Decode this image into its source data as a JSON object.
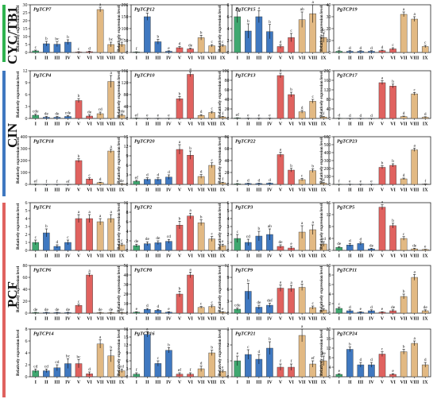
{
  "colors": {
    "green": "#3fa870",
    "blue": "#3f78c0",
    "red": "#e0625f",
    "tan": "#e2b983",
    "group_cyc": "#2fb34f",
    "group_cin": "#3f78c0",
    "group_pcf": "#e0625f"
  },
  "groups": [
    {
      "label": "CYC/TB1",
      "color_key": "group_cyc"
    },
    {
      "label": "CIN",
      "color_key": "group_cin"
    },
    {
      "label": "PCF",
      "color_key": "group_pcf"
    }
  ],
  "y_axis_label": "Relatively expression level",
  "categories": [
    "I",
    "II",
    "III",
    "IV",
    "V",
    "VI",
    "VII",
    "VIII",
    "IX"
  ],
  "bar_colors": [
    "green",
    "blue",
    "blue",
    "blue",
    "red",
    "red",
    "tan",
    "tan",
    "tan"
  ],
  "chart_data": [
    {
      "type": "bar",
      "title": "PgTCP7",
      "yticks": [
        0,
        5,
        10,
        15,
        20,
        25,
        30
      ],
      "values": [
        1,
        5.5,
        5.2,
        6.5,
        0.3,
        0.5,
        27,
        5,
        5
      ],
      "errors": [
        0.5,
        1.5,
        1.5,
        1.5,
        0.2,
        0.3,
        1.5,
        1.5,
        1.5
      ],
      "letters": [
        "c",
        "b",
        "bc",
        "b",
        "c",
        "d",
        "a",
        "bc",
        "bc"
      ]
    },
    {
      "type": "bar",
      "title": "PgTCP12",
      "yticks": [
        0,
        50,
        100,
        150,
        200
      ],
      "values": [
        2,
        150,
        45,
        5,
        20,
        15,
        62,
        28,
        28
      ],
      "errors": [
        1,
        15,
        10,
        2,
        5,
        3,
        10,
        5,
        5
      ],
      "letters": [
        "f",
        "a",
        "b",
        "e",
        "d",
        "de",
        "b",
        "c",
        "c"
      ]
    },
    {
      "type": "bar",
      "title": "PgTCP15",
      "yticks": [
        0,
        2,
        4,
        6,
        8
      ],
      "values": [
        6,
        3.6,
        6,
        3.5,
        1,
        2.5,
        5.5,
        6.5,
        2.5
      ],
      "errors": [
        1,
        1.2,
        1,
        1.2,
        0.3,
        0.7,
        1.3,
        1.5,
        0.8
      ],
      "letters": [
        "a",
        "b",
        "a",
        "b",
        "d",
        "c",
        "ab",
        "a",
        "bc"
      ]
    },
    {
      "type": "bar",
      "title": "PgTCP19",
      "yticks": [
        0,
        10,
        20,
        30,
        40
      ],
      "values": [
        1,
        1,
        1,
        1,
        1.5,
        3,
        32,
        28,
        5
      ],
      "errors": [
        0.5,
        0.5,
        0.5,
        0.5,
        0.5,
        1,
        2,
        2,
        1
      ],
      "letters": [
        "d",
        "d",
        "d",
        "d",
        "d",
        "c",
        "a",
        "a",
        "c"
      ]
    },
    {
      "type": "bar",
      "title": "PgTCP4",
      "yticks": [
        0,
        3,
        6,
        9,
        12
      ],
      "values": [
        0.8,
        0.3,
        0.3,
        0.5,
        4.5,
        0.6,
        1.2,
        9.3,
        0.8
      ],
      "errors": [
        0.3,
        0.2,
        0.2,
        0.2,
        0.5,
        0.3,
        0.4,
        1.5,
        0.3
      ],
      "letters": [
        "cde",
        "de",
        "de",
        "cde",
        "b",
        "de",
        "cd",
        "a",
        "cde"
      ]
    },
    {
      "type": "bar",
      "title": "PgTCP10",
      "yticks": [
        0,
        40,
        80,
        120,
        160
      ],
      "values": [
        1,
        0.5,
        0.5,
        0.5,
        66,
        148,
        10,
        20,
        5
      ],
      "errors": [
        0.5,
        0.3,
        0.3,
        0.3,
        8,
        8,
        3,
        4,
        2
      ],
      "letters": [
        "ef",
        "e",
        "e",
        "e",
        "b",
        "a",
        "d",
        "c",
        "f"
      ]
    },
    {
      "type": "bar",
      "title": "PgTCP13",
      "yticks": [
        0,
        20,
        40,
        60,
        80,
        100
      ],
      "values": [
        1,
        0.5,
        0.5,
        0.5,
        90,
        50,
        14,
        36,
        3
      ],
      "errors": [
        0.5,
        0.3,
        0.3,
        0.3,
        5,
        5,
        3,
        4,
        1
      ],
      "letters": [
        "ef",
        "e",
        "e",
        "e",
        "a",
        "b",
        "d",
        "c",
        "f"
      ]
    },
    {
      "type": "bar",
      "title": "PgTCP17",
      "yticks": [
        0,
        40,
        80,
        120,
        160,
        200
      ],
      "values": [
        1,
        0.5,
        0.5,
        0.5,
        150,
        136,
        8,
        103,
        5
      ],
      "errors": [
        0.5,
        0.3,
        0.3,
        0.3,
        8,
        8,
        2,
        6,
        2
      ],
      "letters": [
        "d",
        "d",
        "d",
        "d",
        "a",
        "b",
        "d",
        "c",
        "d"
      ]
    },
    {
      "type": "bar",
      "title": "PgTCP18",
      "yticks": [
        0,
        100,
        200,
        300,
        400
      ],
      "values": [
        2,
        1,
        1,
        1,
        200,
        45,
        15,
        280,
        5
      ],
      "errors": [
        1,
        0.5,
        0.5,
        0.5,
        15,
        10,
        4,
        15,
        2
      ],
      "letters": [
        "ef",
        "f",
        "f",
        "ef",
        "b",
        "c",
        "d",
        "a",
        "de"
      ]
    },
    {
      "type": "bar",
      "title": "PgTCP20",
      "yticks": [
        0,
        3,
        6,
        9,
        12,
        15
      ],
      "values": [
        1,
        1.6,
        1.6,
        2.3,
        11,
        9.2,
        2.5,
        6,
        0.5
      ],
      "errors": [
        0.3,
        0.5,
        0.5,
        0.7,
        1.5,
        1.3,
        0.6,
        0.8,
        0.2
      ],
      "letters": [
        "ef",
        "d",
        "d",
        "d",
        "a",
        "b",
        "d",
        "c",
        "f"
      ]
    },
    {
      "type": "bar",
      "title": "PgTCP22",
      "yticks": [
        0,
        20,
        40,
        60,
        80
      ],
      "values": [
        1,
        1.5,
        1.5,
        2,
        50,
        24,
        8,
        23,
        2
      ],
      "errors": [
        0.5,
        0.5,
        0.5,
        0.5,
        4,
        3,
        2,
        3,
        1
      ],
      "letters": [
        "e",
        "d",
        "d",
        "d",
        "a",
        "b",
        "c",
        "b",
        "d"
      ]
    },
    {
      "type": "bar",
      "title": "PgTCP23",
      "yticks": [
        0,
        100,
        200,
        300,
        400,
        500,
        600
      ],
      "values": [
        2,
        3,
        3,
        3,
        215,
        240,
        70,
        435,
        5
      ],
      "errors": [
        1,
        1,
        1,
        1,
        20,
        20,
        10,
        20,
        2
      ],
      "letters": [
        "f",
        "e",
        "e",
        "e",
        "b",
        "b",
        "d",
        "a",
        "f"
      ]
    },
    {
      "type": "bar",
      "title": "PgTCP1",
      "yticks": [
        0,
        1,
        2,
        3,
        4,
        5,
        6
      ],
      "values": [
        1,
        2.2,
        0.5,
        1,
        4,
        4,
        3.6,
        4,
        0.7
      ],
      "errors": [
        0.3,
        0.5,
        0.2,
        0.3,
        0.5,
        0.5,
        0.4,
        0.5,
        0.2
      ],
      "letters": [
        "c",
        "b",
        "d",
        "c",
        "a",
        "a",
        "a",
        "a",
        "c"
      ]
    },
    {
      "type": "bar",
      "title": "PgTCP2",
      "yticks": [
        0,
        2,
        4,
        6,
        8,
        10
      ],
      "values": [
        1,
        1.4,
        1.6,
        1.9,
        5.3,
        7.2,
        5.8,
        2.4,
        1
      ],
      "errors": [
        0.3,
        0.4,
        0.4,
        0.4,
        0.8,
        0.6,
        0.6,
        0.5,
        0.3
      ],
      "letters": [
        "de",
        "de",
        "de",
        "cd",
        "b",
        "a",
        "b",
        "c",
        "e"
      ]
    },
    {
      "type": "bar",
      "title": "PgTCP3",
      "yticks": [
        0,
        1,
        2,
        3,
        4,
        5,
        6
      ],
      "values": [
        1.5,
        1,
        1.8,
        2,
        0.5,
        0.3,
        2.3,
        2.6,
        0.8
      ],
      "errors": [
        0.5,
        0.4,
        0.6,
        0.7,
        0.2,
        0.2,
        0.8,
        0.6,
        0.3
      ],
      "letters": [
        "c",
        "cd",
        "b",
        "ab",
        "de",
        "e",
        "a",
        "a",
        "cd"
      ]
    },
    {
      "type": "bar",
      "title": "PgTCP5",
      "yticks": [
        0,
        4,
        8,
        12,
        16
      ],
      "values": [
        1,
        1.8,
        2.3,
        0.5,
        14.5,
        8.3,
        4,
        0.5,
        0.3
      ],
      "errors": [
        0.3,
        0.5,
        0.5,
        0.2,
        0.8,
        0.8,
        0.6,
        0.2,
        0.1
      ],
      "letters": [
        "de",
        "d",
        "d",
        "de",
        "a",
        "b",
        "c",
        "de",
        "e"
      ]
    },
    {
      "type": "bar",
      "title": "PgTCP6",
      "yticks": [
        0,
        20,
        40,
        60,
        80
      ],
      "values": [
        1,
        1,
        1,
        1,
        13,
        64,
        1,
        1,
        1
      ],
      "errors": [
        0.5,
        0.5,
        0.5,
        0.5,
        2,
        3,
        0.5,
        0.5,
        0.5
      ],
      "letters": [
        "de",
        "de",
        "de",
        "de",
        "c",
        "a",
        "de",
        "de",
        "de"
      ]
    },
    {
      "type": "bar",
      "title": "PgTCP8",
      "yticks": [
        0,
        10,
        20,
        30,
        40,
        50
      ],
      "values": [
        1,
        4,
        3,
        1,
        20,
        40,
        6,
        7,
        1
      ],
      "errors": [
        0.5,
        1,
        1,
        0.5,
        3,
        3,
        1,
        1.5,
        0.5
      ],
      "letters": [
        "e",
        "d",
        "d",
        "e",
        "b",
        "a",
        "c",
        "c",
        "e"
      ]
    },
    {
      "type": "bar",
      "title": "PgTCP9",
      "yticks": [
        0,
        3,
        6,
        9,
        12
      ],
      "values": [
        1,
        5.5,
        1.5,
        2,
        6.3,
        6.2,
        6.5,
        1.4,
        0.8
      ],
      "errors": [
        0.3,
        2,
        0.5,
        0.5,
        0.8,
        0.8,
        0.8,
        0.4,
        0.3
      ],
      "letters": [
        "cde",
        "b",
        "de",
        "def",
        "a",
        "a",
        "a",
        "c",
        "e"
      ]
    },
    {
      "type": "bar",
      "title": "PgTCP11",
      "yticks": [
        0,
        2,
        4,
        6,
        8,
        10
      ],
      "values": [
        1,
        0.5,
        0.2,
        0.5,
        0.2,
        0.5,
        3.5,
        7.5,
        0.5
      ],
      "errors": [
        0.3,
        0.2,
        0.1,
        0.2,
        0.1,
        0.2,
        0.5,
        0.6,
        0.2
      ],
      "letters": [
        "c",
        "d",
        "e",
        "d",
        "e",
        "de",
        "b",
        "a",
        "de"
      ]
    },
    {
      "type": "bar",
      "title": "PgTCP14",
      "yticks": [
        0,
        2,
        4,
        6,
        8
      ],
      "values": [
        1,
        1,
        1.5,
        2.2,
        2.2,
        0.5,
        5.5,
        3.5,
        1
      ],
      "errors": [
        0.3,
        0.3,
        0.5,
        0.8,
        0.7,
        0.3,
        0.7,
        1,
        0.3
      ],
      "letters": [
        "cd",
        "cd",
        "cd",
        "bc",
        "bc",
        "d",
        "a",
        "b",
        "cd"
      ]
    },
    {
      "type": "bar",
      "title": "PgTCP16",
      "yticks": [
        0,
        3,
        6,
        9,
        12,
        15,
        18
      ],
      "values": [
        1,
        16,
        5,
        10,
        1,
        1,
        3,
        9,
        2
      ],
      "errors": [
        0.5,
        1,
        1,
        1,
        0.5,
        0.5,
        1,
        1,
        0.5
      ],
      "letters": [
        "f",
        "a",
        "c",
        "b",
        "ef",
        "f",
        "d",
        "b",
        "e"
      ]
    },
    {
      "type": "bar",
      "title": "PgTCP21",
      "yticks": [
        0,
        1,
        2,
        3
      ],
      "values": [
        1,
        1.4,
        1.1,
        1.8,
        0.6,
        0.6,
        2.6,
        0.8,
        1
      ],
      "errors": [
        0.3,
        0.3,
        0.3,
        0.4,
        0.2,
        0.2,
        0.4,
        0.2,
        0.3
      ],
      "letters": [
        "e",
        "c",
        "d",
        "b",
        "f",
        "f",
        "a",
        "ef",
        "de"
      ]
    },
    {
      "type": "bar",
      "title": "PgTCP24",
      "yticks": [
        0,
        4,
        8,
        12,
        16,
        20
      ],
      "values": [
        1,
        11.5,
        5,
        5,
        9.5,
        1,
        10.5,
        14,
        5
      ],
      "errors": [
        0.3,
        1,
        1,
        1,
        1,
        0.3,
        1,
        1,
        1
      ],
      "letters": [
        "e",
        "b",
        "d",
        "d",
        "c",
        "e",
        "b",
        "a",
        "d"
      ]
    }
  ]
}
